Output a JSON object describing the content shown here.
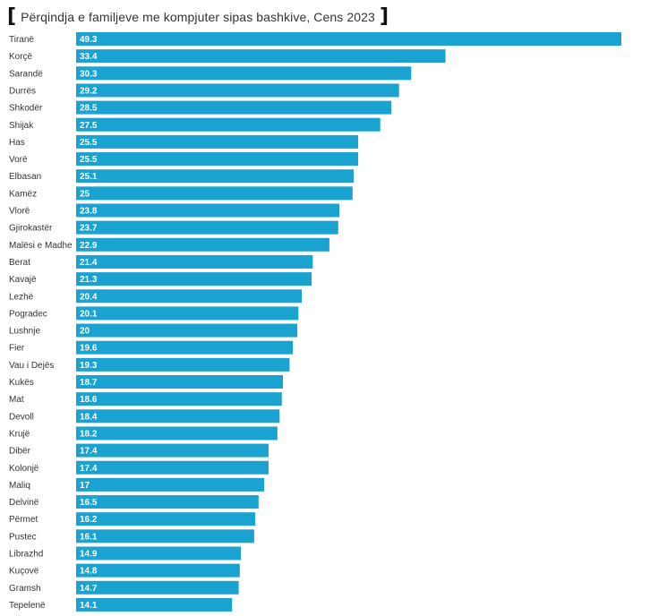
{
  "chart_data": {
    "type": "bar",
    "orientation": "horizontal",
    "title": "Përqindja e familjeve me kompjuter sipas bashkive, Cens 2023",
    "xlabel": "",
    "ylabel": "",
    "xlim": [
      0,
      49.3
    ],
    "bar_color": "#1aa3d1",
    "categories": [
      "Tiranë",
      "Korçë",
      "Sarandë",
      "Durrës",
      "Shkodër",
      "Shijak",
      "Has",
      "Vorë",
      "Elbasan",
      "Kamëz",
      "Vlorë",
      "Gjirokastër",
      "Malësi e Madhe",
      "Berat",
      "Kavajë",
      "Lezhë",
      "Pogradec",
      "Lushnje",
      "Fier",
      "Vau i Dejës",
      "Kukës",
      "Mat",
      "Devoll",
      "Krujë",
      "Dibër",
      "Kolonjë",
      "Maliq",
      "Delvinë",
      "Përmet",
      "Pustec",
      "Librazhd",
      "Kuçovë",
      "Gramsh",
      "Tepelenë"
    ],
    "values": [
      49.3,
      33.4,
      30.3,
      29.2,
      28.5,
      27.5,
      25.5,
      25.5,
      25.1,
      25,
      23.8,
      23.7,
      22.9,
      21.4,
      21.3,
      20.4,
      20.1,
      20,
      19.6,
      19.3,
      18.7,
      18.6,
      18.4,
      18.2,
      17.4,
      17.4,
      17,
      16.5,
      16.2,
      16.1,
      14.9,
      14.8,
      14.7,
      14.1
    ]
  }
}
